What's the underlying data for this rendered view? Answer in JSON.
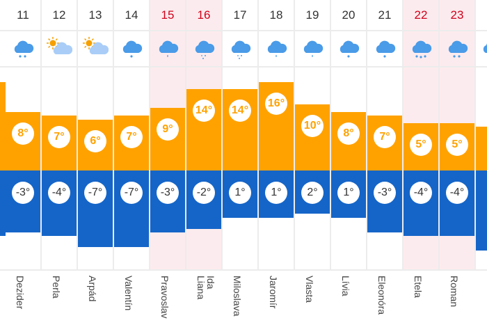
{
  "colors": {
    "high": "#ffa200",
    "low": "#1565c8",
    "weekend_bg": "#fcebee",
    "weekend_text": "#d0021b",
    "icon": "#4a9be8"
  },
  "columns": [
    {
      "day": "",
      "icon": "none",
      "high": 16,
      "low": -4,
      "name": "",
      "weekend": false,
      "partial": true
    },
    {
      "day": "11",
      "icon": "snow-2-icon",
      "high": 8,
      "low": -3,
      "high_label": "8°",
      "low_label": "-3°",
      "name": "Dezider",
      "weekend": false
    },
    {
      "day": "12",
      "icon": "partly-sunny-icon",
      "high": 7,
      "low": -4,
      "high_label": "7°",
      "low_label": "-4°",
      "name": "Perla",
      "weekend": false
    },
    {
      "day": "13",
      "icon": "partly-sunny-icon",
      "high": 6,
      "low": -7,
      "high_label": "6°",
      "low_label": "-7°",
      "name": "Arpád",
      "weekend": false
    },
    {
      "day": "14",
      "icon": "snow-1-icon",
      "high": 7,
      "low": -7,
      "high_label": "7°",
      "low_label": "-7°",
      "name": "Valentín",
      "weekend": false
    },
    {
      "day": "15",
      "icon": "rain-icon",
      "high": 9,
      "low": -3,
      "high_label": "9°",
      "low_label": "-3°",
      "name": "Pravoslav",
      "weekend": true
    },
    {
      "day": "16",
      "icon": "sleet-icon",
      "high": 14,
      "low": -2,
      "high_label": "14°",
      "low_label": "-2°",
      "name": "Ida\nLiana",
      "weekend": true
    },
    {
      "day": "17",
      "icon": "sleet-icon",
      "high": 14,
      "low": 1,
      "high_label": "14°",
      "low_label": "1°",
      "name": "Miloslava",
      "weekend": false
    },
    {
      "day": "18",
      "icon": "rain-icon",
      "high": 16,
      "low": 1,
      "high_label": "16°",
      "low_label": "1°",
      "name": "Jaromír",
      "weekend": false
    },
    {
      "day": "19",
      "icon": "rain-icon",
      "high": 10,
      "low": 2,
      "high_label": "10°",
      "low_label": "2°",
      "name": "Vlasta",
      "weekend": false
    },
    {
      "day": "20",
      "icon": "snow-1-icon",
      "high": 8,
      "low": 1,
      "high_label": "8°",
      "low_label": "1°",
      "name": "Lívia",
      "weekend": false
    },
    {
      "day": "21",
      "icon": "snow-1-icon",
      "high": 7,
      "low": -3,
      "high_label": "7°",
      "low_label": "-3°",
      "name": "Eleonóra",
      "weekend": false
    },
    {
      "day": "22",
      "icon": "snow-3-icon",
      "high": 5,
      "low": -4,
      "high_label": "5°",
      "low_label": "-4°",
      "name": "Etela",
      "weekend": true
    },
    {
      "day": "23",
      "icon": "snow-2-icon",
      "high": 5,
      "low": -4,
      "high_label": "5°",
      "low_label": "-4°",
      "name": "Roman",
      "weekend": true
    },
    {
      "day": "",
      "icon": "snow-1-icon",
      "high": 4,
      "low": -8,
      "name": "",
      "weekend": false,
      "partial": true
    }
  ]
}
